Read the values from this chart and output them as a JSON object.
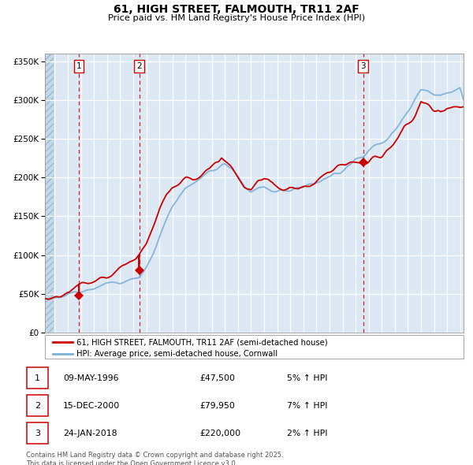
{
  "title": "61, HIGH STREET, FALMOUTH, TR11 2AF",
  "subtitle": "Price paid vs. HM Land Registry's House Price Index (HPI)",
  "legend_line1": "61, HIGH STREET, FALMOUTH, TR11 2AF (semi-detached house)",
  "legend_line2": "HPI: Average price, semi-detached house, Cornwall",
  "table_rows": [
    {
      "num": "1",
      "date": "09-MAY-1996",
      "price": "£47,500",
      "change": "5% ↑ HPI"
    },
    {
      "num": "2",
      "date": "15-DEC-2000",
      "price": "£79,950",
      "change": "7% ↑ HPI"
    },
    {
      "num": "3",
      "date": "24-JAN-2018",
      "price": "£220,000",
      "change": "2% ↑ HPI"
    }
  ],
  "footnote": "Contains HM Land Registry data © Crown copyright and database right 2025.\nThis data is licensed under the Open Government Licence v3.0.",
  "bg_color": "#dce9f5",
  "hatch_color": "#b8cfe0",
  "grid_color": "#ffffff",
  "red_line_color": "#cc0000",
  "blue_line_color": "#7bafd4",
  "sale_marker_color": "#cc0000",
  "vline_color": "#cc0000",
  "ylim": [
    0,
    360000
  ],
  "xlim_start": 1993.75,
  "xlim_end": 2025.75,
  "sale1_x": 1996.35,
  "sale1_y": 47500,
  "sale2_x": 2000.96,
  "sale2_y": 79950,
  "sale3_x": 2018.07,
  "sale3_y": 220000,
  "hpi_waypoints": [
    [
      1993.75,
      43000
    ],
    [
      1994.5,
      44000
    ],
    [
      1995.5,
      45500
    ],
    [
      1996.35,
      45000
    ],
    [
      1997.0,
      47000
    ],
    [
      1998.0,
      52000
    ],
    [
      1999.0,
      58000
    ],
    [
      2000.0,
      66000
    ],
    [
      2000.96,
      74000
    ],
    [
      2001.5,
      84000
    ],
    [
      2002.0,
      100000
    ],
    [
      2002.5,
      120000
    ],
    [
      2003.0,
      140000
    ],
    [
      2003.5,
      158000
    ],
    [
      2004.0,
      170000
    ],
    [
      2004.5,
      178000
    ],
    [
      2005.0,
      182000
    ],
    [
      2005.5,
      186000
    ],
    [
      2006.0,
      190000
    ],
    [
      2006.5,
      194000
    ],
    [
      2007.0,
      198000
    ],
    [
      2007.5,
      202000
    ],
    [
      2008.0,
      200000
    ],
    [
      2008.5,
      192000
    ],
    [
      2009.0,
      178000
    ],
    [
      2009.5,
      172000
    ],
    [
      2010.0,
      176000
    ],
    [
      2010.5,
      178000
    ],
    [
      2011.0,
      175000
    ],
    [
      2011.5,
      173000
    ],
    [
      2012.0,
      172000
    ],
    [
      2012.5,
      173000
    ],
    [
      2013.0,
      175000
    ],
    [
      2013.5,
      177000
    ],
    [
      2014.0,
      180000
    ],
    [
      2014.5,
      183000
    ],
    [
      2015.0,
      186000
    ],
    [
      2015.5,
      190000
    ],
    [
      2016.0,
      195000
    ],
    [
      2016.5,
      200000
    ],
    [
      2017.0,
      206000
    ],
    [
      2017.5,
      212000
    ],
    [
      2018.07,
      215000
    ],
    [
      2018.5,
      220000
    ],
    [
      2019.0,
      224000
    ],
    [
      2019.5,
      228000
    ],
    [
      2020.0,
      232000
    ],
    [
      2020.5,
      242000
    ],
    [
      2021.0,
      255000
    ],
    [
      2021.5,
      268000
    ],
    [
      2022.0,
      280000
    ],
    [
      2022.5,
      288000
    ],
    [
      2023.0,
      285000
    ],
    [
      2023.5,
      278000
    ],
    [
      2024.0,
      275000
    ],
    [
      2024.5,
      278000
    ],
    [
      2025.0,
      280000
    ],
    [
      2025.75,
      282000
    ]
  ],
  "red_waypoints": [
    [
      1993.75,
      44000
    ],
    [
      1994.5,
      45000
    ],
    [
      1995.5,
      47000
    ],
    [
      1996.35,
      47500
    ],
    [
      1997.0,
      49000
    ],
    [
      1998.0,
      54000
    ],
    [
      1999.0,
      60000
    ],
    [
      2000.0,
      70000
    ],
    [
      2000.96,
      79950
    ],
    [
      2001.5,
      95000
    ],
    [
      2002.0,
      115000
    ],
    [
      2002.5,
      138000
    ],
    [
      2003.0,
      155000
    ],
    [
      2003.5,
      168000
    ],
    [
      2004.0,
      178000
    ],
    [
      2004.5,
      185000
    ],
    [
      2005.0,
      188000
    ],
    [
      2005.5,
      192000
    ],
    [
      2006.0,
      196000
    ],
    [
      2006.5,
      200000
    ],
    [
      2007.0,
      206000
    ],
    [
      2007.25,
      214000
    ],
    [
      2007.5,
      212000
    ],
    [
      2008.0,
      205000
    ],
    [
      2008.5,
      195000
    ],
    [
      2009.0,
      182000
    ],
    [
      2009.5,
      178000
    ],
    [
      2010.0,
      185000
    ],
    [
      2010.5,
      188000
    ],
    [
      2011.0,
      183000
    ],
    [
      2011.5,
      180000
    ],
    [
      2012.0,
      178000
    ],
    [
      2012.5,
      182000
    ],
    [
      2013.0,
      185000
    ],
    [
      2013.5,
      188000
    ],
    [
      2014.0,
      192000
    ],
    [
      2014.5,
      196000
    ],
    [
      2015.0,
      200000
    ],
    [
      2015.5,
      205000
    ],
    [
      2016.0,
      210000
    ],
    [
      2016.5,
      215000
    ],
    [
      2017.0,
      218000
    ],
    [
      2017.5,
      220000
    ],
    [
      2018.07,
      220000
    ],
    [
      2018.5,
      224000
    ],
    [
      2019.0,
      228000
    ],
    [
      2019.5,
      232000
    ],
    [
      2020.0,
      238000
    ],
    [
      2020.5,
      250000
    ],
    [
      2021.0,
      262000
    ],
    [
      2021.5,
      276000
    ],
    [
      2022.0,
      290000
    ],
    [
      2022.5,
      308000
    ],
    [
      2023.0,
      300000
    ],
    [
      2023.5,
      290000
    ],
    [
      2024.0,
      288000
    ],
    [
      2024.5,
      292000
    ],
    [
      2025.0,
      295000
    ],
    [
      2025.75,
      292000
    ]
  ]
}
